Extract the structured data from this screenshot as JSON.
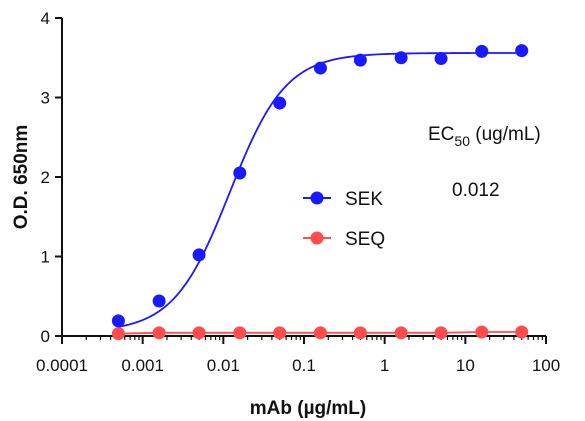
{
  "chart_data": {
    "type": "scatter",
    "title": "",
    "xlabel": "mAb (µg/mL)",
    "ylabel": "O.D. 650nm",
    "xscale": "log",
    "xlim": [
      0.0001,
      100
    ],
    "ylim": [
      0,
      4
    ],
    "x_ticks": [
      0.0001,
      0.001,
      0.01,
      0.1,
      1,
      10,
      100
    ],
    "x_tick_labels": [
      "0.0001",
      "0.001",
      "0.01",
      "0.1",
      "1",
      "10",
      "100"
    ],
    "y_ticks": [
      0,
      1,
      2,
      3,
      4
    ],
    "y_tick_labels": [
      "0",
      "1",
      "2",
      "3",
      "4"
    ],
    "grid": false,
    "legend_position": "center",
    "series": [
      {
        "name": "SEK",
        "color": "#1a1aff",
        "x": [
          0.0005,
          0.0016,
          0.005,
          0.016,
          0.05,
          0.16,
          0.5,
          1.6,
          5,
          16,
          50
        ],
        "y": [
          0.19,
          0.44,
          1.02,
          2.05,
          2.93,
          3.37,
          3.47,
          3.5,
          3.49,
          3.58,
          3.59
        ],
        "fit": {
          "bottom": 0.05,
          "top": 3.56,
          "ec50": 0.012,
          "hill": 1.25
        }
      },
      {
        "name": "SEQ",
        "color": "#ff4d4d",
        "x": [
          0.0005,
          0.0016,
          0.005,
          0.016,
          0.05,
          0.16,
          0.5,
          1.6,
          5,
          16,
          50
        ],
        "y": [
          0.03,
          0.04,
          0.04,
          0.04,
          0.04,
          0.04,
          0.04,
          0.04,
          0.04,
          0.05,
          0.05
        ]
      }
    ],
    "annotation": {
      "ec50_label_main": "EC",
      "ec50_label_sub": "50",
      "ec50_label_unit": " (ug/mL)",
      "ec50_value": "0.012"
    }
  }
}
